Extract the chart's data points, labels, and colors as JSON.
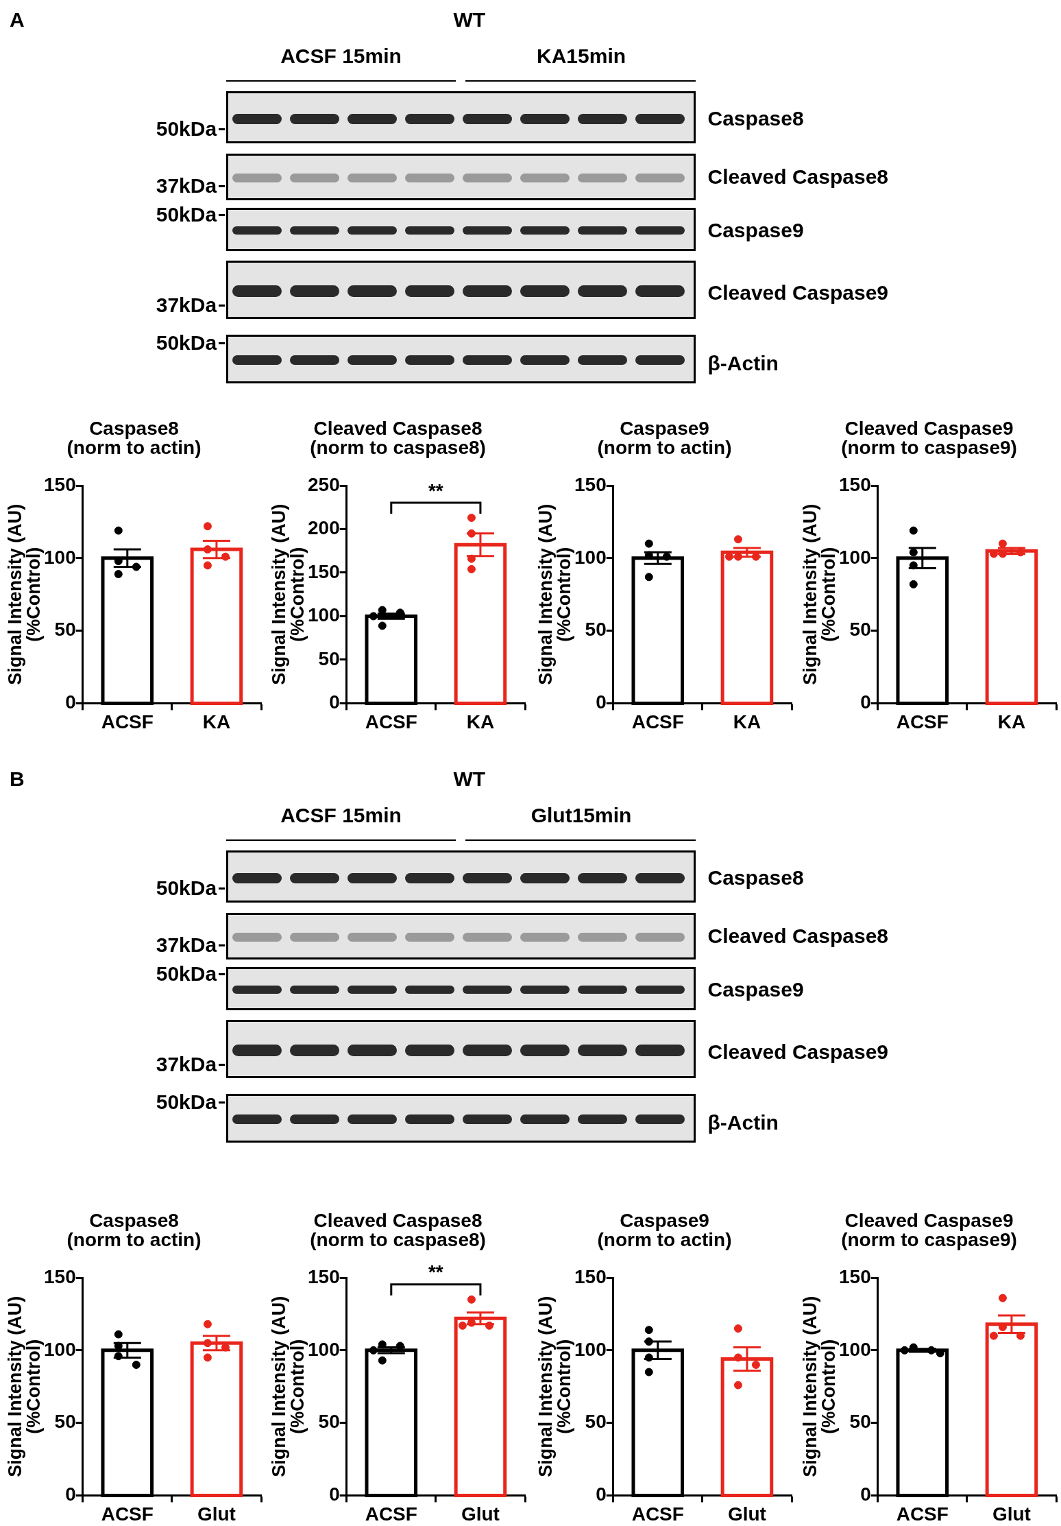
{
  "chart_data": [
    {
      "type": "other",
      "title": "WT",
      "annotations": [
        "A",
        "ACSF 15min",
        "KA15min",
        "50kDa",
        "37kDa",
        "50kDa",
        "37kDa",
        "50kDa",
        "Caspase8",
        "Cleaved Caspase8",
        "Caspase9",
        "Cleaved Caspase9",
        "β-Actin"
      ]
    },
    {
      "type": "bar",
      "title": "Caspase8\n(norm to actin)",
      "ylabel": "Signal Intensity (AU)\n(%Control)",
      "categories": [
        "ACSF",
        "KA"
      ],
      "ylim": [
        0,
        150
      ],
      "yticks": [
        0,
        50,
        100,
        150
      ],
      "marker": "circle",
      "series": [
        {
          "type": "bar",
          "values": [
            100,
            106
          ],
          "colors": [
            "#000000",
            "#e8261c"
          ],
          "errors": [
            6,
            6
          ]
        },
        {
          "type": "scatter",
          "x": [
            "ACSF",
            "ACSF",
            "ACSF",
            "ACSF"
          ],
          "values": [
            119,
            98,
            94,
            89
          ],
          "color": "#000000"
        },
        {
          "type": "scatter",
          "x": [
            "KA",
            "KA",
            "KA",
            "KA"
          ],
          "values": [
            122,
            106,
            101,
            95
          ],
          "color": "#e8261c"
        }
      ]
    },
    {
      "type": "bar",
      "title": "Cleaved Caspase8\n(norm to caspase8)",
      "ylabel": "Signal Intensity (AU)\n(%Control)",
      "categories": [
        "ACSF",
        "KA"
      ],
      "ylim": [
        0,
        250
      ],
      "yticks": [
        0,
        50,
        100,
        150,
        200,
        250
      ],
      "marker": "circle",
      "annotations": [
        "**"
      ],
      "series": [
        {
          "type": "bar",
          "values": [
            100,
            182
          ],
          "colors": [
            "#000000",
            "#e8261c"
          ],
          "errors": [
            3,
            13
          ]
        },
        {
          "type": "scatter",
          "x": [
            "ACSF",
            "ACSF",
            "ACSF",
            "ACSF"
          ],
          "values": [
            107,
            104,
            100,
            89
          ],
          "color": "#000000"
        },
        {
          "type": "scatter",
          "x": [
            "KA",
            "KA",
            "KA",
            "KA"
          ],
          "values": [
            213,
            195,
            166,
            154
          ],
          "color": "#e8261c"
        }
      ]
    },
    {
      "type": "bar",
      "title": "Caspase9\n(norm to actin)",
      "ylabel": "Signal Intensity (AU)\n(%Control)",
      "categories": [
        "ACSF",
        "KA"
      ],
      "ylim": [
        0,
        150
      ],
      "yticks": [
        0,
        50,
        100,
        150
      ],
      "marker": "circle",
      "series": [
        {
          "type": "bar",
          "values": [
            100,
            104
          ],
          "colors": [
            "#000000",
            "#e8261c"
          ],
          "errors": [
            4,
            3
          ]
        },
        {
          "type": "scatter",
          "x": [
            "ACSF",
            "ACSF",
            "ACSF",
            "ACSF"
          ],
          "values": [
            110,
            102,
            101,
            87
          ],
          "color": "#000000"
        },
        {
          "type": "scatter",
          "x": [
            "KA",
            "KA",
            "KA",
            "KA"
          ],
          "values": [
            113,
            101,
            101,
            101
          ],
          "color": "#e8261c"
        }
      ]
    },
    {
      "type": "bar",
      "title": "Cleaved Caspase9\n(norm to caspase9)",
      "ylabel": "Signal Intensity (AU)\n(%Control)",
      "categories": [
        "ACSF",
        "KA"
      ],
      "ylim": [
        0,
        150
      ],
      "yticks": [
        0,
        50,
        100,
        150
      ],
      "marker": "circle",
      "series": [
        {
          "type": "bar",
          "values": [
            100,
            105
          ],
          "colors": [
            "#000000",
            "#e8261c"
          ],
          "errors": [
            7,
            2
          ]
        },
        {
          "type": "scatter",
          "x": [
            "ACSF",
            "ACSF",
            "ACSF",
            "ACSF"
          ],
          "values": [
            119,
            104,
            95,
            82
          ],
          "color": "#000000"
        },
        {
          "type": "scatter",
          "x": [
            "KA",
            "KA",
            "KA",
            "KA"
          ],
          "values": [
            110,
            104,
            103,
            103
          ],
          "color": "#e8261c"
        }
      ]
    },
    {
      "type": "other",
      "title": "WT",
      "annotations": [
        "B",
        "ACSF 15min",
        "Glut15min",
        "50kDa",
        "37kDa",
        "50kDa",
        "37kDa",
        "50kDa",
        "Caspase8",
        "Cleaved Caspase8",
        "Caspase9",
        "Cleaved Caspase9",
        "β-Actin"
      ]
    },
    {
      "type": "bar",
      "title": "Caspase8\n(norm to actin)",
      "ylabel": "Signal Intensity (AU)\n(%Control)",
      "categories": [
        "ACSF",
        "Glut"
      ],
      "ylim": [
        0,
        150
      ],
      "yticks": [
        0,
        50,
        100,
        150
      ],
      "marker": "circle",
      "series": [
        {
          "type": "bar",
          "values": [
            100,
            105
          ],
          "colors": [
            "#000000",
            "#e8261c"
          ],
          "errors": [
            5,
            5
          ]
        },
        {
          "type": "scatter",
          "x": [
            "ACSF",
            "ACSF",
            "ACSF",
            "ACSF"
          ],
          "values": [
            111,
            103,
            96,
            90
          ],
          "color": "#000000"
        },
        {
          "type": "scatter",
          "x": [
            "Glut",
            "Glut",
            "Glut",
            "Glut"
          ],
          "values": [
            118,
            105,
            102,
            95
          ],
          "color": "#e8261c"
        }
      ]
    },
    {
      "type": "bar",
      "title": "Cleaved Caspase8\n(norm to caspase8)",
      "ylabel": "Signal Intensity (AU)\n(%Control)",
      "categories": [
        "ACSF",
        "Glut"
      ],
      "ylim": [
        0,
        150
      ],
      "yticks": [
        0,
        50,
        100,
        150
      ],
      "marker": "circle",
      "annotations": [
        "**"
      ],
      "series": [
        {
          "type": "bar",
          "values": [
            100,
            122
          ],
          "colors": [
            "#000000",
            "#e8261c"
          ],
          "errors": [
            2,
            4
          ]
        },
        {
          "type": "scatter",
          "x": [
            "ACSF",
            "ACSF",
            "ACSF",
            "ACSF"
          ],
          "values": [
            104,
            103,
            100,
            93
          ],
          "color": "#000000"
        },
        {
          "type": "scatter",
          "x": [
            "Glut",
            "Glut",
            "Glut",
            "Glut"
          ],
          "values": [
            135,
            119,
            117,
            117
          ],
          "color": "#e8261c"
        }
      ]
    },
    {
      "type": "bar",
      "title": "Caspase9\n(norm to actin)",
      "ylabel": "Signal Intensity (AU)\n(%Control)",
      "categories": [
        "ACSF",
        "Glut"
      ],
      "ylim": [
        0,
        150
      ],
      "yticks": [
        0,
        50,
        100,
        150
      ],
      "marker": "circle",
      "series": [
        {
          "type": "bar",
          "values": [
            100,
            94
          ],
          "colors": [
            "#000000",
            "#e8261c"
          ],
          "errors": [
            6,
            8
          ]
        },
        {
          "type": "scatter",
          "x": [
            "ACSF",
            "ACSF",
            "ACSF",
            "ACSF"
          ],
          "values": [
            114,
            106,
            95,
            85
          ],
          "color": "#000000"
        },
        {
          "type": "scatter",
          "x": [
            "Glut",
            "Glut",
            "Glut",
            "Glut"
          ],
          "values": [
            115,
            95,
            90,
            76
          ],
          "color": "#e8261c"
        }
      ]
    },
    {
      "type": "bar",
      "title": "Cleaved Caspase9\n(norm to caspase9)",
      "ylabel": "Signal Intensity (AU)\n(%Control)",
      "categories": [
        "ACSF",
        "Glut"
      ],
      "ylim": [
        0,
        150
      ],
      "yticks": [
        0,
        50,
        100,
        150
      ],
      "marker": "circle",
      "series": [
        {
          "type": "bar",
          "values": [
            100,
            118
          ],
          "colors": [
            "#000000",
            "#e8261c"
          ],
          "errors": [
            1,
            6
          ]
        },
        {
          "type": "scatter",
          "x": [
            "ACSF",
            "ACSF",
            "ACSF",
            "ACSF"
          ],
          "values": [
            102,
            100,
            100,
            98
          ],
          "color": "#000000"
        },
        {
          "type": "scatter",
          "x": [
            "Glut",
            "Glut",
            "Glut",
            "Glut"
          ],
          "values": [
            136,
            116,
            110,
            110
          ],
          "color": "#e8261c"
        }
      ]
    }
  ]
}
